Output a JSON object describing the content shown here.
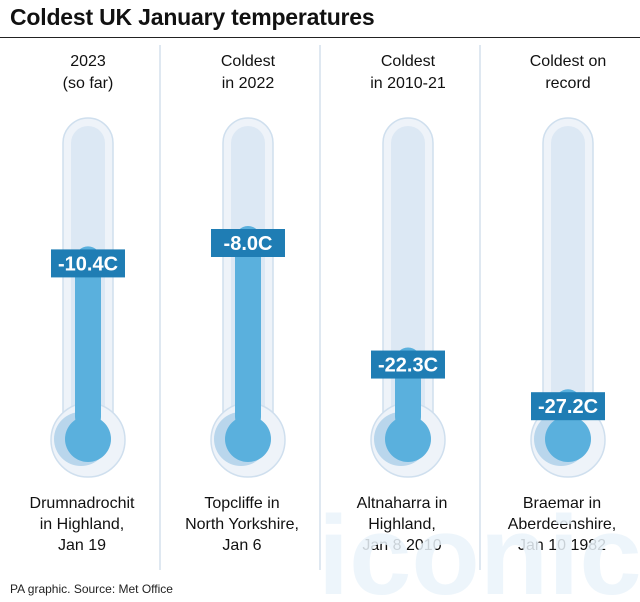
{
  "title": "Coldest UK January temperatures",
  "source": "PA graphic. Source: Met Office",
  "watermark": "iconic",
  "colors": {
    "tube_outer": "#eef3f9",
    "tube_inner": "#dce8f4",
    "tube_border": "#cfdfee",
    "mercury": "#5ab0dd",
    "bulb_shadow": "#b9d6ec",
    "label_bg": "#1f7db4",
    "label_text": "#ffffff",
    "divider": "#dfe8f1"
  },
  "chart_data": {
    "type": "thermometer",
    "series": [
      {
        "header": [
          "2023",
          "(so far)"
        ],
        "value": -10.4,
        "value_label": "-10.4C",
        "location": [
          "Drumnadrochit",
          "in Highland,",
          "Jan 19"
        ]
      },
      {
        "header": [
          "Coldest",
          "in 2022"
        ],
        "value": -8.0,
        "value_label": "-8.0C",
        "location": [
          "Topcliffe in",
          "North Yorkshire,",
          "Jan 6"
        ]
      },
      {
        "header": [
          "Coldest",
          "in 2010-21"
        ],
        "value": -22.3,
        "value_label": "-22.3C",
        "location": [
          "Altnaharra in",
          "Highland,",
          "Jan 8 2010"
        ]
      },
      {
        "header": [
          "Coldest on",
          "record"
        ],
        "value": -27.2,
        "value_label": "-27.2C",
        "location": [
          "Braemar in",
          "Aberdeenshire,",
          "Jan 10 1982"
        ]
      }
    ]
  }
}
